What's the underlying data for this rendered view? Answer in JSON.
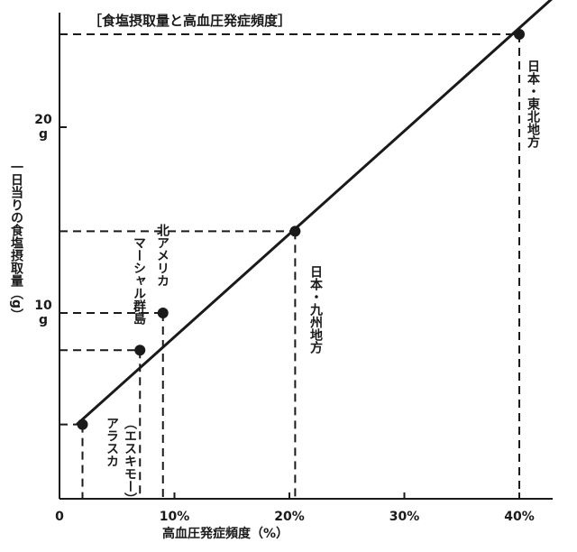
{
  "chart_data": {
    "type": "scatter",
    "title": "［食塩摂取量と高血圧発症頻度］",
    "xlabel": "高血圧発症頻度（%）",
    "ylabel": "一日当りの食塩摂取量（g）",
    "xlim": [
      0,
      42
    ],
    "ylim": [
      0,
      26
    ],
    "x_ticks": [
      {
        "value": 0,
        "label": "0"
      },
      {
        "value": 10,
        "label": "10%"
      },
      {
        "value": 20,
        "label": "20%"
      },
      {
        "value": 30,
        "label": "30%"
      },
      {
        "value": 40,
        "label": "40%"
      }
    ],
    "y_ticks": [
      {
        "value": 10,
        "label": "10 g"
      },
      {
        "value": 20,
        "label": "20 g"
      }
    ],
    "points": [
      {
        "x": 2,
        "y": 4,
        "label": "アラスカ",
        "sublabel": "（エスキモー）"
      },
      {
        "x": 7,
        "y": 8,
        "label": "マーシャル群島"
      },
      {
        "x": 9,
        "y": 10,
        "label": "北アメリカ"
      },
      {
        "x": 20.5,
        "y": 14.4,
        "label": "日本・九州地方"
      },
      {
        "x": 40,
        "y": 25,
        "label": "日本・東北地方"
      }
    ],
    "regression_line": {
      "x": [
        1.5,
        43
      ],
      "y": [
        4,
        27
      ]
    },
    "grid": false,
    "dashed_guides": true
  }
}
